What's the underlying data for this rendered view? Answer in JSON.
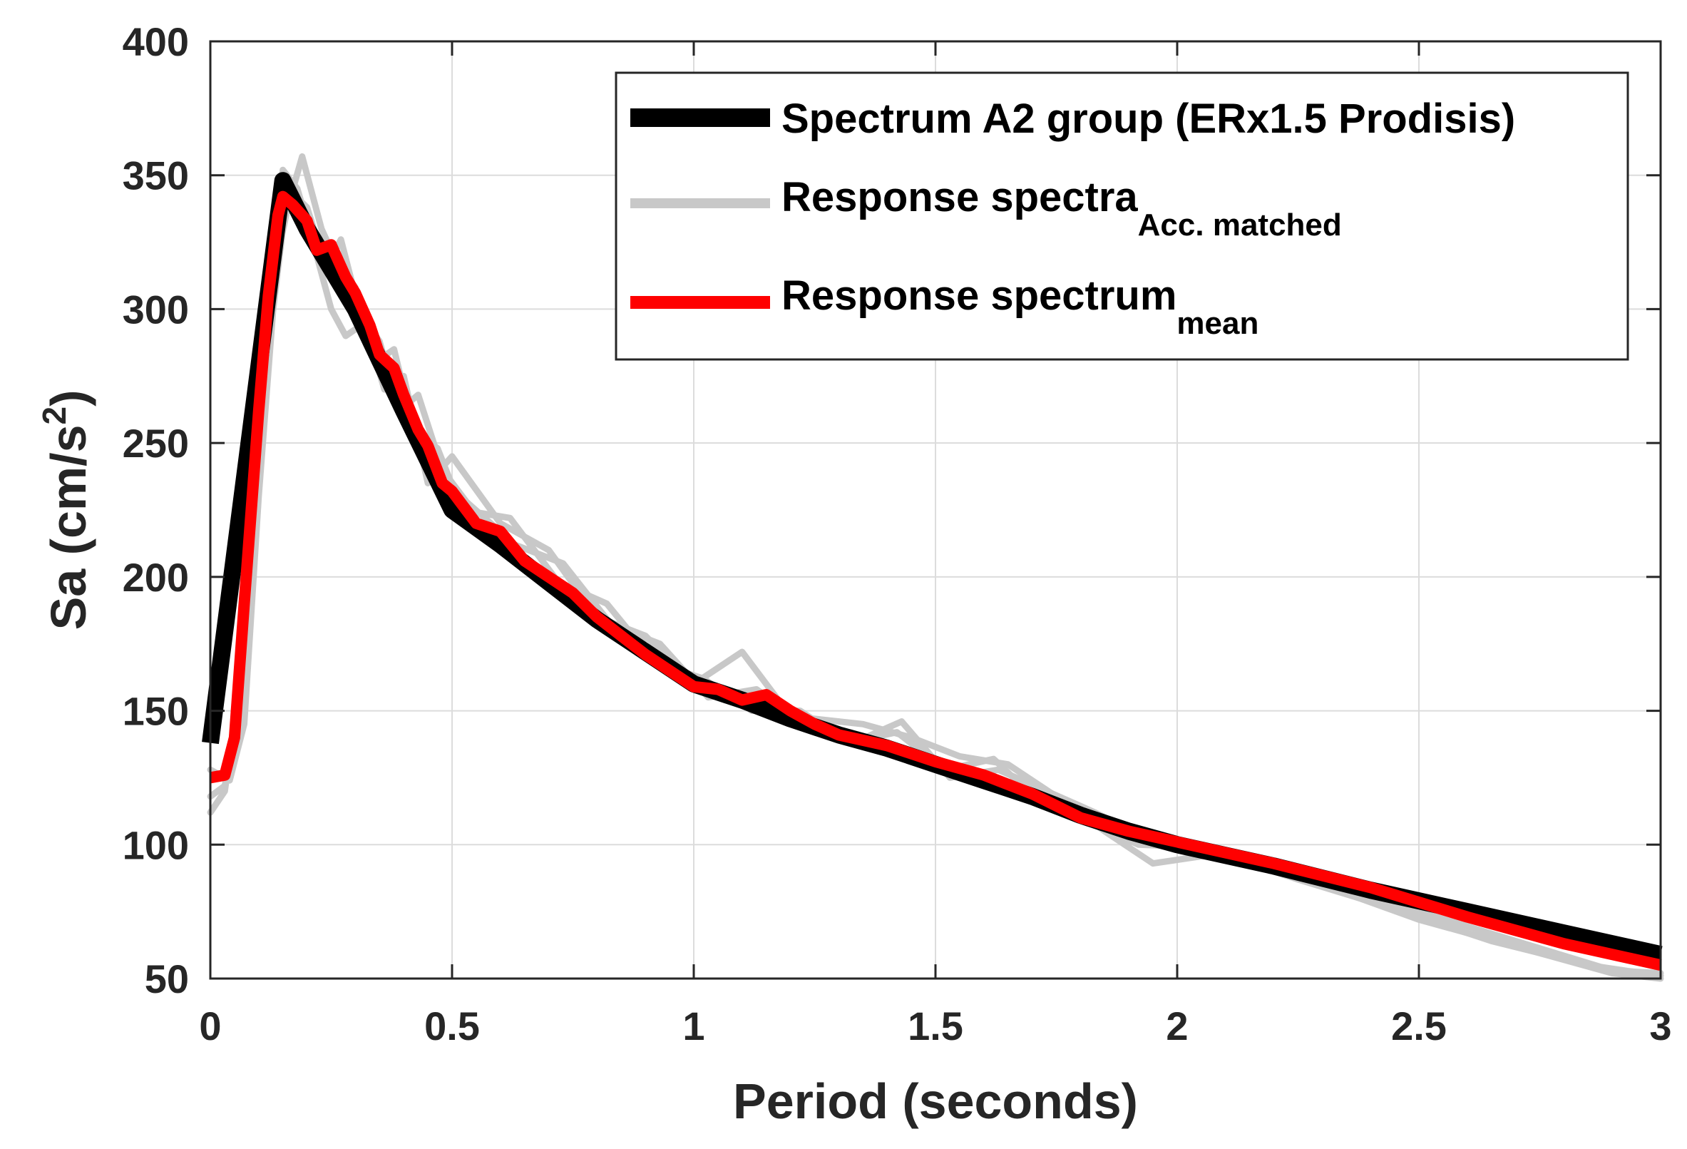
{
  "chart_data": {
    "type": "line",
    "title": "",
    "xlabel": "Period (seconds)",
    "ylabel": {
      "main": "Sa (cm/s",
      "sup": "2",
      "close": ")"
    },
    "xlim": [
      0,
      3
    ],
    "ylim": [
      50,
      400
    ],
    "grid": true,
    "legend_position": "top-right",
    "x_ticks": [
      {
        "value": 0,
        "label": "0"
      },
      {
        "value": 0.5,
        "label": "0.5"
      },
      {
        "value": 1,
        "label": "1"
      },
      {
        "value": 1.5,
        "label": "1.5"
      },
      {
        "value": 2,
        "label": "2"
      },
      {
        "value": 2.5,
        "label": "2.5"
      },
      {
        "value": 3,
        "label": "3"
      }
    ],
    "y_ticks": [
      {
        "value": 50,
        "label": "50"
      },
      {
        "value": 100,
        "label": "100"
      },
      {
        "value": 150,
        "label": "150"
      },
      {
        "value": 200,
        "label": "200"
      },
      {
        "value": 250,
        "label": "250"
      },
      {
        "value": 300,
        "label": "300"
      },
      {
        "value": 350,
        "label": "350"
      },
      {
        "value": 400,
        "label": "400"
      }
    ],
    "legend": [
      {
        "key": "design",
        "text": "Spectrum A2 group (ERx1.5 Prodisis)",
        "sub": ""
      },
      {
        "key": "matched",
        "text": "Response spectra",
        "sub": "Acc. matched"
      },
      {
        "key": "mean",
        "text": "Response spectrum",
        "sub": "mean"
      }
    ],
    "series": [
      {
        "name": "Spectrum A2 group (ERx1.5 Prodisis)",
        "role": "design",
        "color": "#000000",
        "x": [
          0,
          0.15,
          0.2,
          0.3,
          0.4,
          0.5,
          0.6,
          0.7,
          0.8,
          0.9,
          1.0,
          1.1,
          1.2,
          1.3,
          1.4,
          1.5,
          1.6,
          1.7,
          1.8,
          1.9,
          2.0,
          2.2,
          2.4,
          2.6,
          2.8,
          3.0
        ],
        "y": [
          138,
          348,
          330,
          300,
          262,
          225,
          212,
          198,
          184,
          172,
          160,
          154,
          147,
          141,
          136,
          130,
          124,
          118,
          111,
          105,
          100,
          92,
          83,
          75,
          67,
          59
        ]
      },
      {
        "name": "Response spectrum mean",
        "role": "mean",
        "color": "#ff0000",
        "x": [
          0,
          0.03,
          0.05,
          0.07,
          0.1,
          0.12,
          0.14,
          0.15,
          0.17,
          0.2,
          0.22,
          0.25,
          0.28,
          0.3,
          0.33,
          0.35,
          0.38,
          0.4,
          0.43,
          0.45,
          0.48,
          0.5,
          0.55,
          0.6,
          0.65,
          0.7,
          0.75,
          0.8,
          0.85,
          0.9,
          0.95,
          1.0,
          1.05,
          1.1,
          1.15,
          1.2,
          1.25,
          1.3,
          1.4,
          1.5,
          1.6,
          1.7,
          1.8,
          1.9,
          2.0,
          2.2,
          2.4,
          2.6,
          2.8,
          3.0
        ],
        "y": [
          125,
          126,
          140,
          190,
          262,
          305,
          335,
          342,
          339,
          333,
          322,
          324,
          312,
          306,
          294,
          283,
          278,
          268,
          255,
          249,
          235,
          232,
          220,
          217,
          206,
          200,
          194,
          185,
          178,
          171,
          165,
          159,
          158,
          154,
          156,
          150,
          145,
          141,
          137,
          131,
          126,
          119,
          110,
          105,
          101,
          93,
          84,
          73,
          63,
          55
        ]
      }
    ],
    "matched_series": [
      {
        "name": "Response spectra Acc. matched",
        "color": "#c8c8c8",
        "x": [
          0,
          0.03,
          0.06,
          0.1,
          0.13,
          0.15,
          0.18,
          0.22,
          0.25,
          0.28,
          0.32,
          0.36,
          0.4,
          0.45,
          0.5,
          0.6,
          0.7,
          0.8,
          0.9,
          1.0,
          1.1,
          1.2,
          1.35,
          1.45,
          1.55,
          1.65,
          1.75,
          1.85,
          1.95,
          2.1,
          2.3,
          2.5,
          2.7,
          2.9,
          3.0
        ],
        "y": [
          118,
          122,
          150,
          250,
          320,
          352,
          345,
          320,
          300,
          290,
          295,
          270,
          275,
          235,
          245,
          220,
          210,
          185,
          178,
          160,
          172,
          148,
          145,
          140,
          133,
          130,
          118,
          105,
          93,
          97,
          85,
          72,
          62,
          52,
          50
        ]
      },
      {
        "name": "Response spectra Acc. matched",
        "color": "#c8c8c8",
        "x": [
          0,
          0.03,
          0.06,
          0.1,
          0.13,
          0.16,
          0.19,
          0.23,
          0.26,
          0.3,
          0.34,
          0.38,
          0.42,
          0.47,
          0.52,
          0.62,
          0.72,
          0.82,
          0.92,
          1.02,
          1.12,
          1.22,
          1.32,
          1.42,
          1.52,
          1.62,
          1.72,
          1.82,
          1.92,
          2.05,
          2.25,
          2.45,
          2.65,
          2.85,
          3.0
        ],
        "y": [
          112,
          120,
          160,
          240,
          312,
          338,
          357,
          330,
          318,
          308,
          280,
          285,
          255,
          248,
          225,
          222,
          198,
          190,
          168,
          162,
          150,
          150,
          138,
          142,
          128,
          132,
          115,
          108,
          100,
          99,
          87,
          76,
          64,
          55,
          51
        ]
      },
      {
        "name": "Response spectra Acc. matched",
        "color": "#c8c8c8",
        "x": [
          0,
          0.04,
          0.07,
          0.1,
          0.13,
          0.16,
          0.2,
          0.24,
          0.27,
          0.31,
          0.35,
          0.39,
          0.43,
          0.48,
          0.53,
          0.63,
          0.73,
          0.83,
          0.93,
          1.03,
          1.13,
          1.23,
          1.33,
          1.43,
          1.53,
          1.63,
          1.73,
          1.83,
          1.93,
          2.1,
          2.3,
          2.5,
          2.7,
          2.9,
          3.0
        ],
        "y": [
          128,
          124,
          145,
          230,
          300,
          345,
          338,
          315,
          326,
          298,
          288,
          262,
          268,
          240,
          228,
          212,
          205,
          182,
          175,
          155,
          158,
          145,
          138,
          146,
          125,
          128,
          120,
          112,
          103,
          96,
          86,
          75,
          64,
          53,
          52
        ]
      }
    ]
  }
}
